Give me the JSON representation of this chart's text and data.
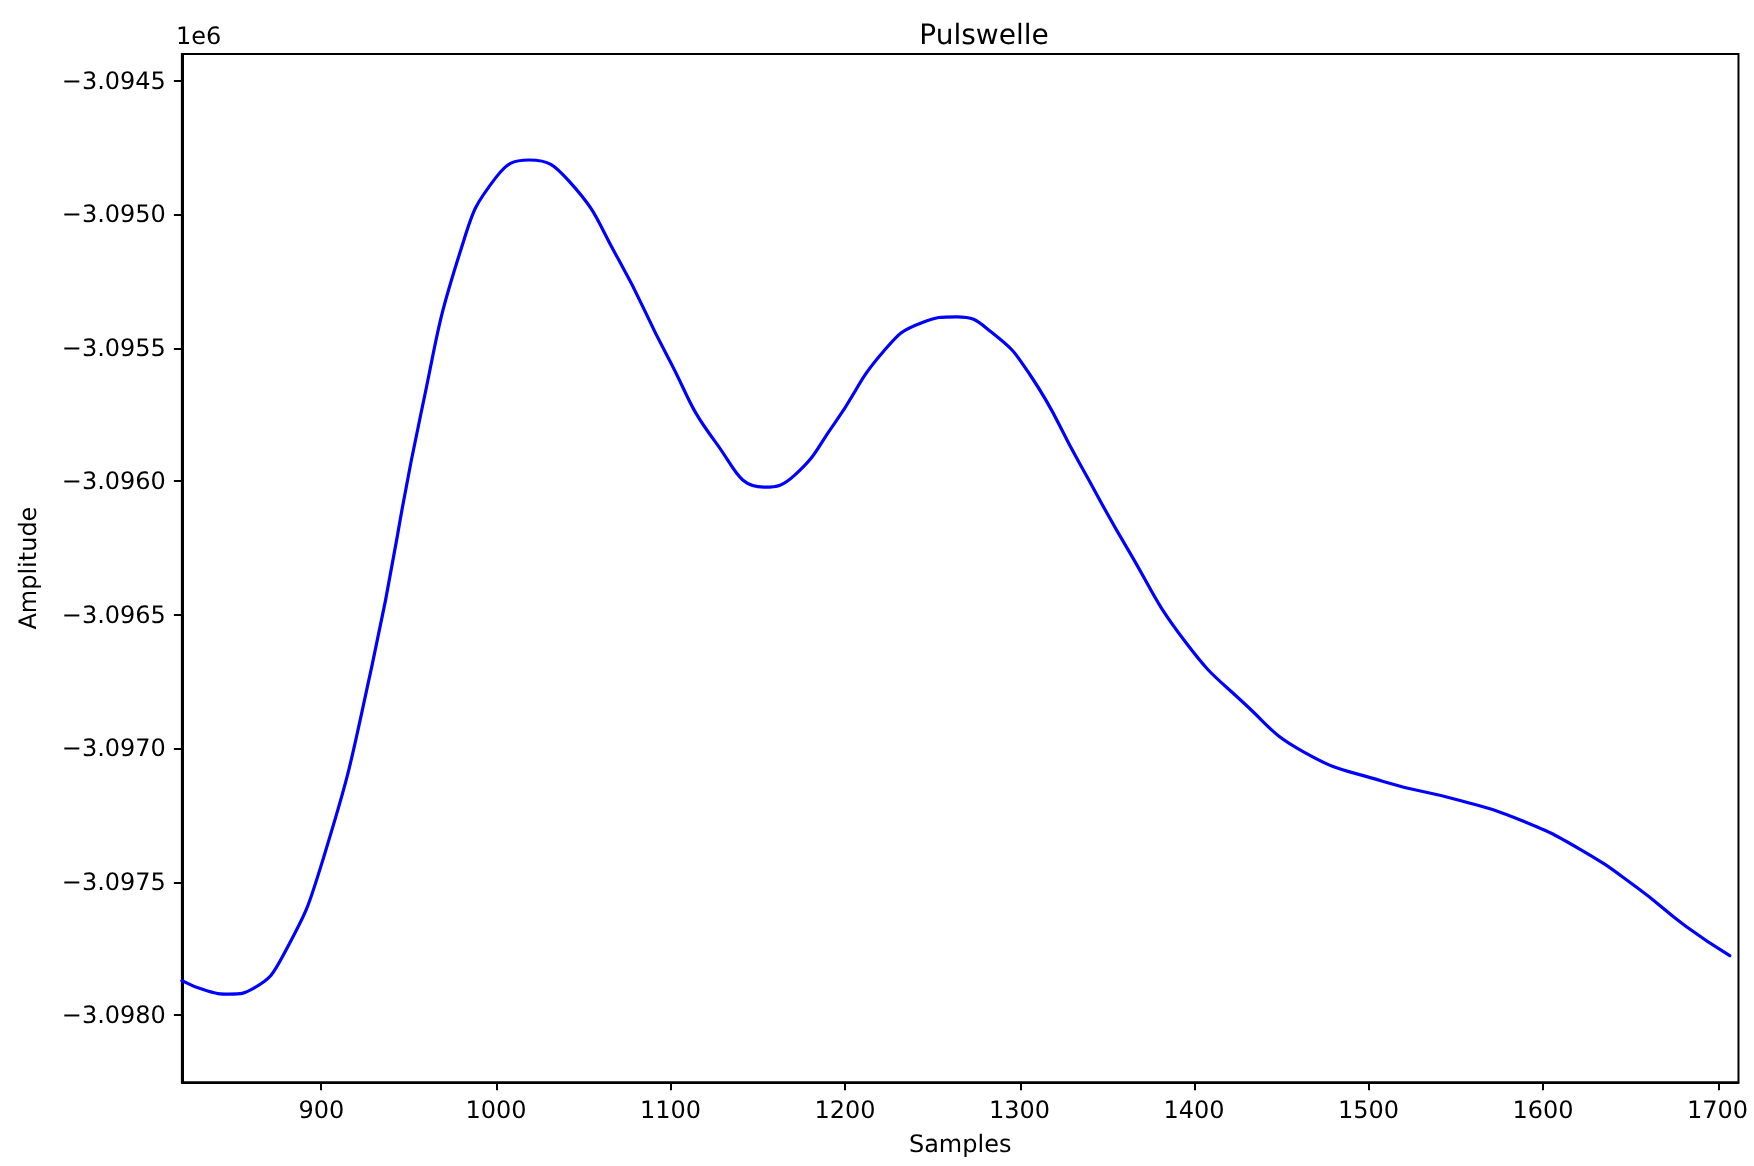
{
  "chart_data": {
    "type": "line",
    "title": "Pulswelle",
    "xlabel": "Samples",
    "ylabel": "Amplitude",
    "annotations": [
      "1e6"
    ],
    "x": [
      820,
      833.5,
      847,
      861,
      878,
      901,
      929,
      957,
      980,
      1000,
      1019,
      1042,
      1070,
      1098,
      1126,
      1154,
      1171,
      1194,
      1222,
      1244,
      1264,
      1284,
      1306,
      1334,
      1362,
      1395,
      1429,
      1463,
      1508,
      1553,
      1587,
      1621,
      1654,
      1682,
      1707
    ],
    "series": [
      {
        "color": "#0000ff",
        "values": [
          -3.09787,
          -3.097906,
          -3.09792,
          -3.097899,
          -3.097776,
          -3.097413,
          -3.096688,
          -3.095746,
          -3.09513,
          -3.094862,
          -3.094797,
          -3.094877,
          -3.095167,
          -3.095529,
          -3.095855,
          -3.096022,
          -3.095978,
          -3.095783,
          -3.095514,
          -3.095406,
          -3.095384,
          -3.095442,
          -3.095601,
          -3.095928,
          -3.096254,
          -3.096601,
          -3.096833,
          -3.097014,
          -3.097123,
          -3.097196,
          -3.097268,
          -3.097377,
          -3.097522,
          -3.097667,
          -3.097776
        ]
      }
    ],
    "xlim": [
      820,
      1712
    ],
    "xticks": [
      900,
      1000,
      1100,
      1200,
      1300,
      1400,
      1500,
      1600,
      1700
    ],
    "ylim": [
      -3.09825,
      -3.0944
    ],
    "yticks": [
      {
        "value": -3.098,
        "label": "−3.0980"
      },
      -3.0975,
      {
        "value": -3.097,
        "label": "−3.0970"
      },
      -3.0965,
      {
        "value": -3.096,
        "label": "−3.0960"
      },
      -3.0955,
      {
        "value": -3.095,
        "label": "−3.0950"
      },
      -3.0945
    ],
    "grid": false,
    "marker": "none",
    "line_style": "solid"
  }
}
